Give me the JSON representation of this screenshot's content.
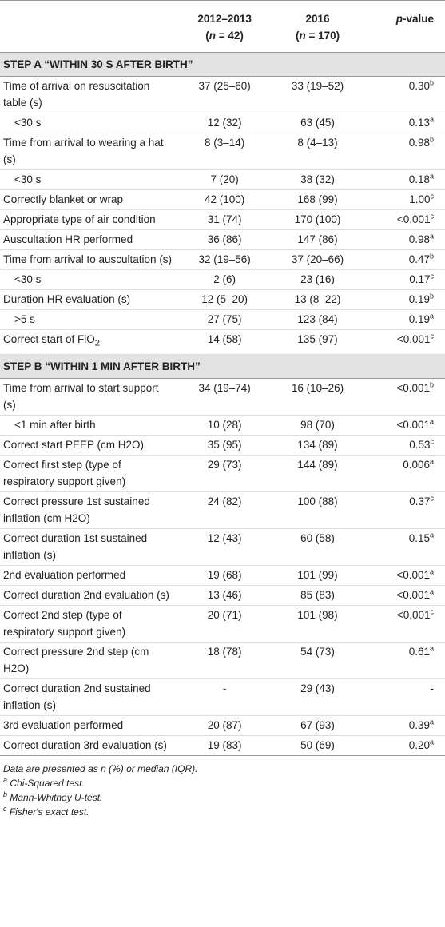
{
  "header": {
    "col1": {
      "title": "2012–2013",
      "open": "(",
      "var": "n",
      "rest": " = 42)"
    },
    "col2": {
      "title": "2016",
      "open": "(",
      "var": "n",
      "rest": " = 170)"
    },
    "col3": {
      "var": "p",
      "rest": "-value"
    }
  },
  "sections": [
    {
      "title": "STEP A “WITHIN 30 S AFTER BIRTH”",
      "rows": [
        {
          "label": "Time of arrival on resuscitation table (s)",
          "c1": "37 (25–60)",
          "c2": "33 (19–52)",
          "p": "0.30",
          "sup": "b"
        },
        {
          "label": "<30 s",
          "indent": true,
          "c1": "12 (32)",
          "c2": "63 (45)",
          "p": "0.13",
          "sup": "a"
        },
        {
          "label": "Time from arrival to wearing a hat (s)",
          "c1": "8 (3–14)",
          "c2": "8 (4–13)",
          "p": "0.98",
          "sup": "b"
        },
        {
          "label": "<30 s",
          "indent": true,
          "c1": "7 (20)",
          "c2": "38 (32)",
          "p": "0.18",
          "sup": "a"
        },
        {
          "label": "Correctly blanket or wrap",
          "c1": "42 (100)",
          "c2": "168 (99)",
          "p": "1.00",
          "sup": "c"
        },
        {
          "label": "Appropriate type of air condition",
          "c1": "31 (74)",
          "c2": "170 (100)",
          "p": "<0.001",
          "sup": "c"
        },
        {
          "label": "Auscultation HR performed",
          "c1": "36 (86)",
          "c2": "147 (86)",
          "p": "0.98",
          "sup": "a"
        },
        {
          "label": "Time from arrival to auscultation (s)",
          "c1": "32 (19–56)",
          "c2": "37 (20–66)",
          "p": "0.47",
          "sup": "b"
        },
        {
          "label": "<30 s",
          "indent": true,
          "c1": "2 (6)",
          "c2": "23 (16)",
          "p": "0.17",
          "sup": "c"
        },
        {
          "label": "Duration HR evaluation (s)",
          "c1": "12 (5–20)",
          "c2": "13 (8–22)",
          "p": "0.19",
          "sup": "b"
        },
        {
          "label": ">5 s",
          "indent": true,
          "c1": "27 (75)",
          "c2": "123 (84)",
          "p": "0.19",
          "sup": "a"
        },
        {
          "label": "Correct start of FiO",
          "label_sub": "2",
          "c1": "14 (58)",
          "c2": "135 (97)",
          "p": "<0.001",
          "sup": "c"
        }
      ]
    },
    {
      "title": "STEP B “WITHIN 1 MIN AFTER BIRTH”",
      "rows": [
        {
          "label": "Time from arrival to start support (s)",
          "c1": "34 (19–74)",
          "c2": "16 (10–26)",
          "p": "<0.001",
          "sup": "b"
        },
        {
          "label": "<1 min after birth",
          "indent": true,
          "c1": "10 (28)",
          "c2": "98 (70)",
          "p": "<0.001",
          "sup": "a"
        },
        {
          "label": "Correct start PEEP (cm H2O)",
          "c1": "35 (95)",
          "c2": "134 (89)",
          "p": "0.53",
          "sup": "c"
        },
        {
          "label": "Correct first step (type of respiratory support given)",
          "c1": "29 (73)",
          "c2": "144 (89)",
          "p": "0.006",
          "sup": "a"
        },
        {
          "label": "Correct pressure 1st sustained inflation (cm H2O)",
          "c1": "24 (82)",
          "c2": "100 (88)",
          "p": "0.37",
          "sup": "c"
        },
        {
          "label": "Correct duration 1st sustained inflation (s)",
          "c1": "12 (43)",
          "c2": "60 (58)",
          "p": "0.15",
          "sup": "a"
        },
        {
          "label": "2nd evaluation performed",
          "c1": "19 (68)",
          "c2": "101 (99)",
          "p": "<0.001",
          "sup": "a"
        },
        {
          "label": "Correct duration 2nd evaluation (s)",
          "c1": "13 (46)",
          "c2": "85 (83)",
          "p": "<0.001",
          "sup": "a"
        },
        {
          "label": "Correct 2nd step (type of respiratory support given)",
          "c1": "20 (71)",
          "c2": "101 (98)",
          "p": "<0.001",
          "sup": "c"
        },
        {
          "label": "Correct pressure 2nd step (cm H2O)",
          "c1": "18 (78)",
          "c2": "54 (73)",
          "p": "0.61",
          "sup": "a"
        },
        {
          "label": "Correct duration 2nd sustained inflation (s)",
          "c1": "-",
          "c2": "29 (43)",
          "p": "-"
        },
        {
          "label": "3rd evaluation performed",
          "c1": "20 (87)",
          "c2": "67 (93)",
          "p": "0.39",
          "sup": "a"
        },
        {
          "label": "Correct duration 3rd evaluation (s)",
          "c1": "19 (83)",
          "c2": "50 (69)",
          "p": "0.20",
          "sup": "a"
        }
      ]
    }
  ],
  "footnotes": {
    "intro": "Data are presented as n (%) or median (IQR).",
    "notes": [
      {
        "mark": "a",
        "text": "Chi-Squared test."
      },
      {
        "mark": "b",
        "text": "Mann-Whitney U-test."
      },
      {
        "mark": "c",
        "text": "Fisher's exact test."
      }
    ]
  }
}
